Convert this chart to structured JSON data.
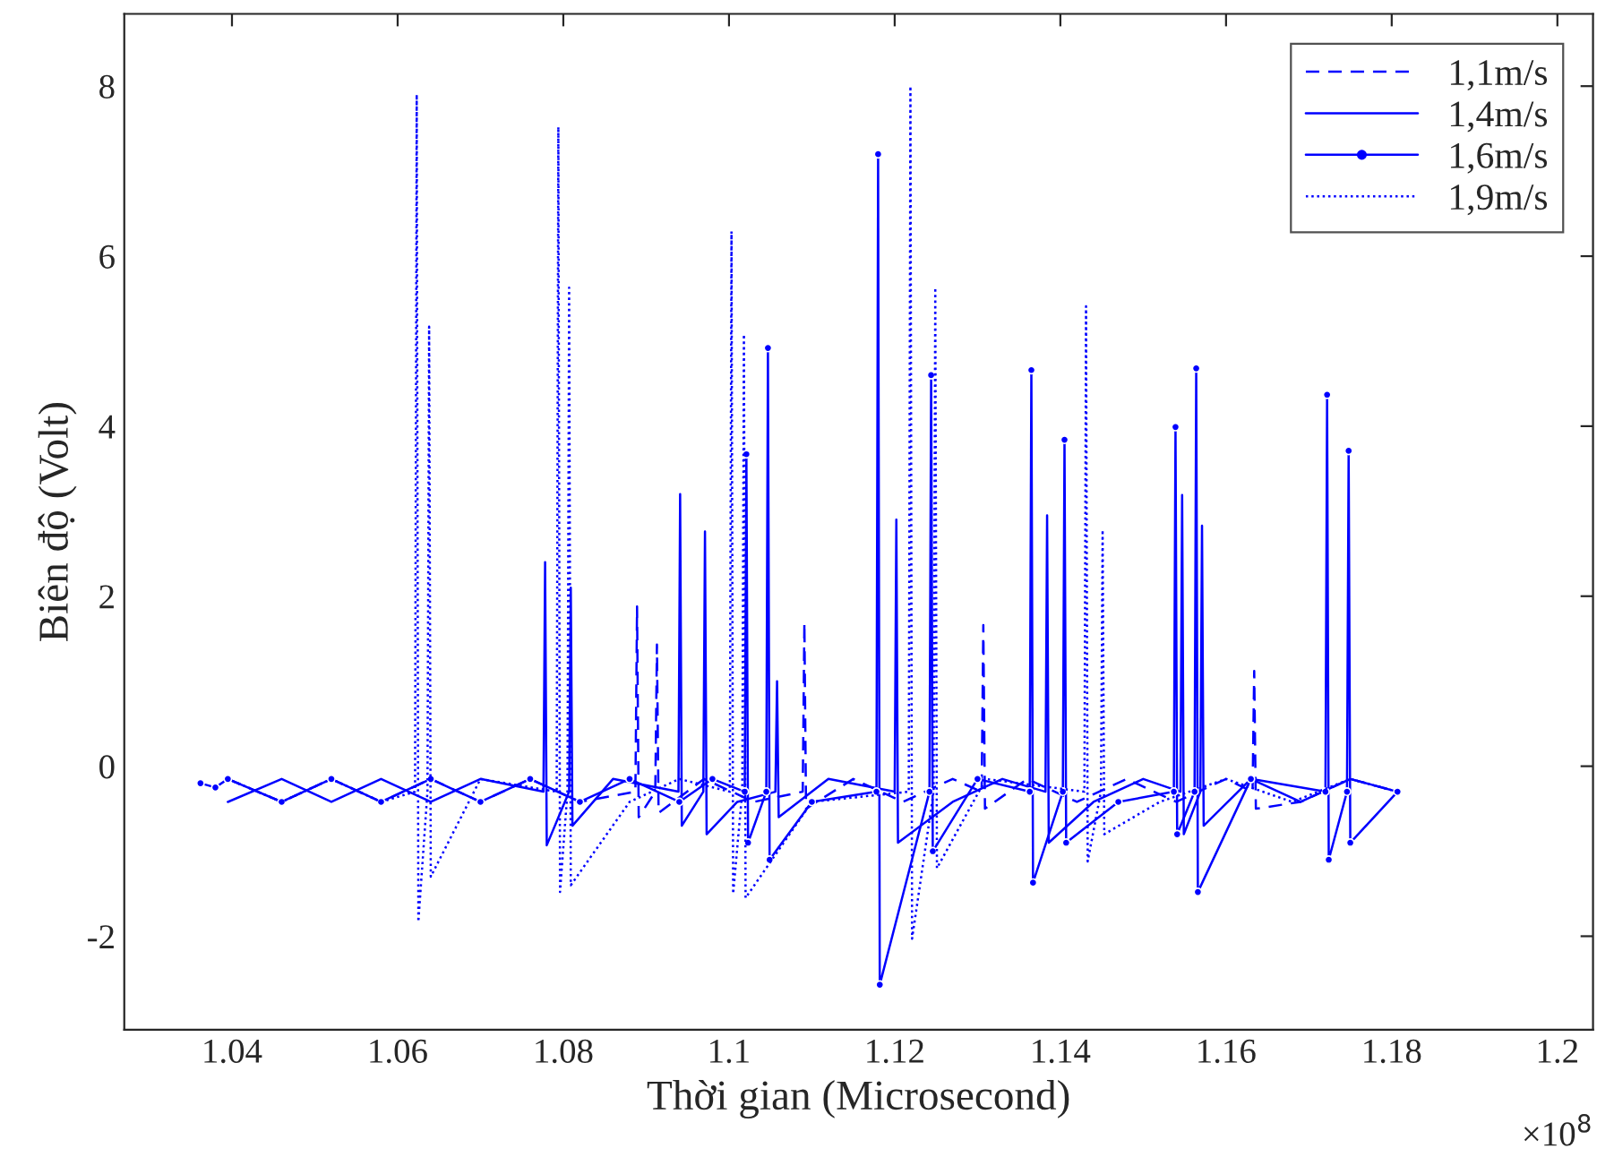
{
  "chart_data": {
    "type": "line",
    "xlabel": "Thời gian (Microsecond)",
    "ylabel": "Biên độ (Volt)",
    "annotations": [
      "×10$^{8}$"
    ],
    "xlim": [
      1.027,
      1.2043
    ],
    "xticks": [
      1.04,
      1.06,
      1.08,
      1.1,
      1.12,
      1.14,
      1.16,
      1.18,
      1.2
    ],
    "ylim": [
      -3.1,
      8.85
    ],
    "yticks": [
      -2,
      0,
      2,
      4,
      6,
      8
    ],
    "grid": false,
    "legend": "top right",
    "series": [
      {
        "name": "1,1m/s",
        "color": "#0000ff",
        "line_style": "dashed",
        "marker": "none",
        "x": [
          1.0395,
          1.046,
          1.052,
          1.058,
          1.064,
          1.07,
          1.076,
          1.082,
          1.0887,
          1.0889,
          1.0891,
          1.0911,
          1.0913,
          1.0915,
          1.097,
          1.103,
          1.1089,
          1.1091,
          1.1093,
          1.115,
          1.121,
          1.127,
          1.1305,
          1.1307,
          1.1309,
          1.136,
          1.142,
          1.148,
          1.154,
          1.16,
          1.1632,
          1.1634,
          1.1636,
          1.169,
          1.175,
          1.1807
        ],
        "values": [
          -0.15,
          -0.42,
          -0.15,
          -0.42,
          -0.15,
          -0.42,
          -0.15,
          -0.42,
          -0.3,
          1.88,
          -0.6,
          -0.3,
          1.43,
          -0.55,
          -0.15,
          -0.42,
          -0.3,
          1.69,
          -0.5,
          -0.15,
          -0.42,
          -0.15,
          -0.3,
          1.66,
          -0.5,
          -0.15,
          -0.42,
          -0.15,
          -0.42,
          -0.15,
          -0.3,
          1.12,
          -0.5,
          -0.42,
          -0.15,
          -0.3
        ]
      },
      {
        "name": "1,4m/s",
        "color": "#0000ff",
        "line_style": "solid",
        "marker": "none",
        "x": [
          1.0395,
          1.046,
          1.052,
          1.058,
          1.064,
          1.07,
          1.0776,
          1.0778,
          1.078,
          1.0807,
          1.0809,
          1.0811,
          1.086,
          1.0939,
          1.0941,
          1.0943,
          1.0969,
          1.0971,
          1.0973,
          1.101,
          1.1056,
          1.1058,
          1.106,
          1.112,
          1.12,
          1.1202,
          1.1204,
          1.127,
          1.133,
          1.1382,
          1.1384,
          1.1386,
          1.144,
          1.15,
          1.1545,
          1.1547,
          1.1549,
          1.1569,
          1.1571,
          1.1573,
          1.163,
          1.169,
          1.175,
          1.1807
        ],
        "values": [
          -0.42,
          -0.15,
          -0.42,
          -0.15,
          -0.42,
          -0.15,
          -0.3,
          2.4,
          -0.93,
          -0.3,
          2.1,
          -0.7,
          -0.15,
          -0.3,
          3.2,
          -0.7,
          -0.3,
          2.76,
          -0.8,
          -0.42,
          -0.3,
          1.0,
          -0.6,
          -0.15,
          -0.3,
          2.9,
          -0.9,
          -0.42,
          -0.15,
          -0.3,
          2.95,
          -0.9,
          -0.42,
          -0.15,
          -0.3,
          3.19,
          -0.8,
          -0.3,
          2.83,
          -0.7,
          -0.15,
          -0.42,
          -0.15,
          -0.3
        ]
      },
      {
        "name": "1,6m/s",
        "color": "#0000ff",
        "line_style": "solid",
        "marker": "circle",
        "x": [
          1.0362,
          1.038,
          1.0395,
          1.046,
          1.052,
          1.058,
          1.064,
          1.07,
          1.076,
          1.082,
          1.088,
          1.094,
          1.098,
          1.1019,
          1.1021,
          1.1023,
          1.1045,
          1.1047,
          1.1049,
          1.11,
          1.1178,
          1.118,
          1.1182,
          1.1242,
          1.1244,
          1.1246,
          1.13,
          1.1363,
          1.1365,
          1.1367,
          1.1403,
          1.1405,
          1.1407,
          1.147,
          1.1537,
          1.1539,
          1.1541,
          1.1562,
          1.1564,
          1.1566,
          1.163,
          1.172,
          1.1722,
          1.1724,
          1.1746,
          1.1748,
          1.175,
          1.1807
        ],
        "values": [
          -0.2,
          -0.25,
          -0.15,
          -0.42,
          -0.15,
          -0.42,
          -0.15,
          -0.42,
          -0.15,
          -0.42,
          -0.15,
          -0.42,
          -0.15,
          -0.3,
          3.67,
          -0.9,
          -0.3,
          4.92,
          -1.1,
          -0.42,
          -0.3,
          7.2,
          -2.57,
          -0.3,
          4.6,
          -1.0,
          -0.15,
          -0.3,
          4.66,
          -1.37,
          -0.3,
          3.84,
          -0.9,
          -0.42,
          -0.3,
          3.99,
          -0.8,
          -0.3,
          4.68,
          -1.48,
          -0.15,
          -0.3,
          4.37,
          -1.1,
          -0.3,
          3.71,
          -0.9,
          -0.3
        ]
      },
      {
        "name": "1,9m/s",
        "color": "#0000ff",
        "line_style": "dotted",
        "marker": "none",
        "x": [
          1.0395,
          1.046,
          1.052,
          1.058,
          1.0621,
          1.0623,
          1.0625,
          1.0636,
          1.0638,
          1.064,
          1.07,
          1.0792,
          1.0794,
          1.0796,
          1.0805,
          1.0807,
          1.0809,
          1.088,
          1.094,
          1.1001,
          1.1003,
          1.1005,
          1.1016,
          1.1018,
          1.102,
          1.11,
          1.1217,
          1.1219,
          1.1221,
          1.1247,
          1.1249,
          1.1251,
          1.131,
          1.1429,
          1.1431,
          1.1433,
          1.1449,
          1.1451,
          1.1453,
          1.152,
          1.16,
          1.168,
          1.175,
          1.1807
        ],
        "values": [
          -0.15,
          -0.42,
          -0.15,
          -0.42,
          -0.3,
          7.9,
          -1.83,
          -0.3,
          5.17,
          -1.3,
          -0.15,
          -0.3,
          7.52,
          -1.48,
          -0.3,
          5.63,
          -1.4,
          -0.42,
          -0.15,
          -0.3,
          6.29,
          -1.5,
          -0.3,
          5.08,
          -1.55,
          -0.42,
          -0.3,
          8.0,
          -2.03,
          -0.3,
          5.63,
          -1.2,
          -0.15,
          -0.3,
          5.41,
          -1.12,
          -0.3,
          2.78,
          -0.8,
          -0.42,
          -0.15,
          -0.42,
          -0.15,
          -0.3
        ]
      }
    ]
  }
}
